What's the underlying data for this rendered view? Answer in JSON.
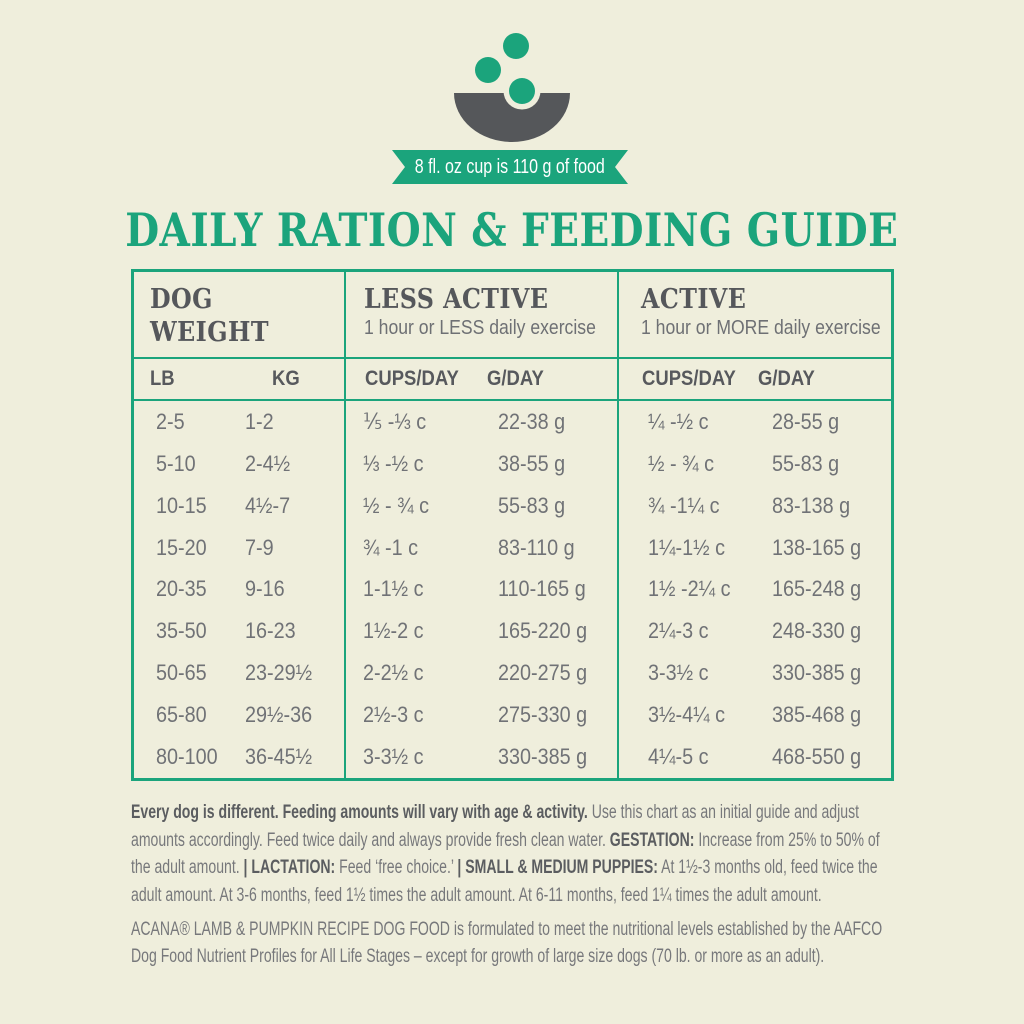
{
  "colors": {
    "background": "#EFEEDC",
    "accent_green": "#1BA47C",
    "bowl_gray": "#55575A",
    "heading_text": "#55575B",
    "body_text": "#707276",
    "footnote_bold": "#5B5D60",
    "footnote_regular": "#77787B"
  },
  "banner": {
    "text": "8 fl. oz cup is 110 g of food"
  },
  "title": "DAILY RATION & FEEDING GUIDE",
  "table": {
    "groups": [
      {
        "label": "DOG\nWEIGHT",
        "sublabel": ""
      },
      {
        "label": "LESS ACTIVE",
        "sublabel": "1 hour or LESS daily exercise"
      },
      {
        "label": "ACTIVE",
        "sublabel": "1 hour or MORE daily exercise"
      }
    ],
    "columns": [
      "LB",
      "KG",
      "CUPS/DAY",
      "G/DAY",
      "CUPS/DAY",
      "G/DAY"
    ],
    "rows": [
      [
        "2-5",
        "1-2",
        "⅕ -⅓ c",
        "22-38 g",
        "¼ -½ c",
        "28-55 g"
      ],
      [
        "5-10",
        "2-4½",
        "⅓ -½ c",
        "38-55 g",
        "½ - ¾ c",
        "55-83 g"
      ],
      [
        "10-15",
        "4½-7",
        "½ - ¾ c",
        "55-83 g",
        "¾ -1¼ c",
        "83-138 g"
      ],
      [
        "15-20",
        "7-9",
        "¾ -1 c",
        "83-110 g",
        "1¼-1½ c",
        "138-165 g"
      ],
      [
        "20-35",
        "9-16",
        "1-1½ c",
        "110-165 g",
        "1½ -2¼ c",
        "165-248 g"
      ],
      [
        "35-50",
        "16-23",
        "1½-2 c",
        "165-220 g",
        "2¼-3 c",
        "248-330 g"
      ],
      [
        "50-65",
        "23-29½",
        "2-2½ c",
        "220-275 g",
        "3-3½ c",
        "330-385 g"
      ],
      [
        "65-80",
        "29½-36",
        "2½-3 c",
        "275-330 g",
        "3½-4¼ c",
        "385-468 g"
      ],
      [
        "80-100",
        "36-45½",
        "3-3½ c",
        "330-385 g",
        "4¼-5 c",
        "468-550 g"
      ]
    ]
  },
  "footnote": {
    "lines": [
      {
        "segments": [
          {
            "t": "Every dog is different. Feeding amounts will vary with age & activity.",
            "b": true
          },
          {
            "t": " Use this chart as an initial guide and adjust",
            "b": false
          }
        ]
      },
      {
        "segments": [
          {
            "t": "amounts accordingly. Feed twice daily and always provide fresh clean water. ",
            "b": false
          },
          {
            "t": "GESTATION:",
            "b": true
          },
          {
            "t": " Increase from 25% to 50% of",
            "b": false
          }
        ]
      },
      {
        "segments": [
          {
            "t": "the adult amount. ",
            "b": false
          },
          {
            "t": "| LACTATION:",
            "b": true
          },
          {
            "t": " Feed ‘free choice.’ ",
            "b": false
          },
          {
            "t": "| SMALL & MEDIUM PUPPIES:",
            "b": true
          },
          {
            "t": " At 1½-3 months old, feed twice the",
            "b": false
          }
        ]
      },
      {
        "segments": [
          {
            "t": "adult amount. At 3-6 months, feed 1½ times the adult amount. At 6-11 months, feed 1¼ times the adult amount.",
            "b": false
          }
        ]
      }
    ]
  },
  "aafco": {
    "lines": [
      {
        "segments": [
          {
            "t": "ACANA® LAMB & PUMPKIN RECIPE DOG FOOD is formulated to meet the nutritional levels established by the AAFCO",
            "b": false
          }
        ]
      },
      {
        "segments": [
          {
            "t": "Dog Food Nutrient Profiles for All Life Stages – except for growth of large size dogs (70 lb. or more as an adult).",
            "b": false
          }
        ]
      }
    ]
  }
}
